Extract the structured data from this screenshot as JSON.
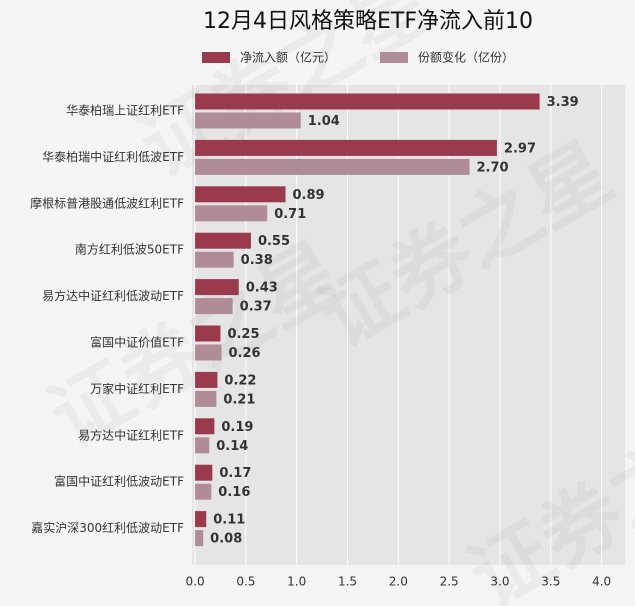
{
  "chart_data": {
    "type": "barh",
    "title": "12月4日风格策略ETF净流入前10",
    "watermark": "证券之星",
    "categories": [
      "华泰柏瑞上证红利ETF",
      "华泰柏瑞中证红利低波ETF",
      "摩根标普港股通低波红利ETF",
      "南方红利低波50ETF",
      "易方达中证红利低波动ETF",
      "富国中证价值ETF",
      "万家中证红利ETF",
      "易方达中证红利ETF",
      "富国中证红利低波动ETF",
      "嘉实沪深300红利低波动ETF"
    ],
    "series": [
      {
        "name": "净流入额（亿元）",
        "color": "#9b3a4d",
        "values": [
          3.39,
          2.97,
          0.89,
          0.55,
          0.43,
          0.25,
          0.22,
          0.19,
          0.17,
          0.11
        ],
        "value_labels": [
          "3.39",
          "2.97",
          "0.89",
          "0.55",
          "0.43",
          "0.25",
          "0.22",
          "0.19",
          "0.17",
          "0.11"
        ]
      },
      {
        "name": "份额变化（亿份）",
        "color": "#b08d96",
        "values": [
          1.04,
          2.7,
          0.71,
          0.38,
          0.37,
          0.26,
          0.21,
          0.14,
          0.16,
          0.08
        ],
        "value_labels": [
          "1.04",
          "2.70",
          "0.71",
          "0.38",
          "0.37",
          "0.26",
          "0.21",
          "0.14",
          "0.16",
          "0.08"
        ]
      }
    ],
    "xlim": [
      -0.03,
      4.23
    ],
    "xticks": [
      {
        "value": 0,
        "label": "0.0"
      },
      {
        "value": 0.5,
        "label": "0.5"
      },
      {
        "value": 1,
        "label": "1.0"
      },
      {
        "value": 1.5,
        "label": "1.5"
      },
      {
        "value": 2,
        "label": "2.0"
      },
      {
        "value": 2.5,
        "label": "2.5"
      },
      {
        "value": 3,
        "label": "3.0"
      },
      {
        "value": 3.5,
        "label": "3.5"
      },
      {
        "value": 4,
        "label": "4.0"
      }
    ],
    "grid": true
  }
}
